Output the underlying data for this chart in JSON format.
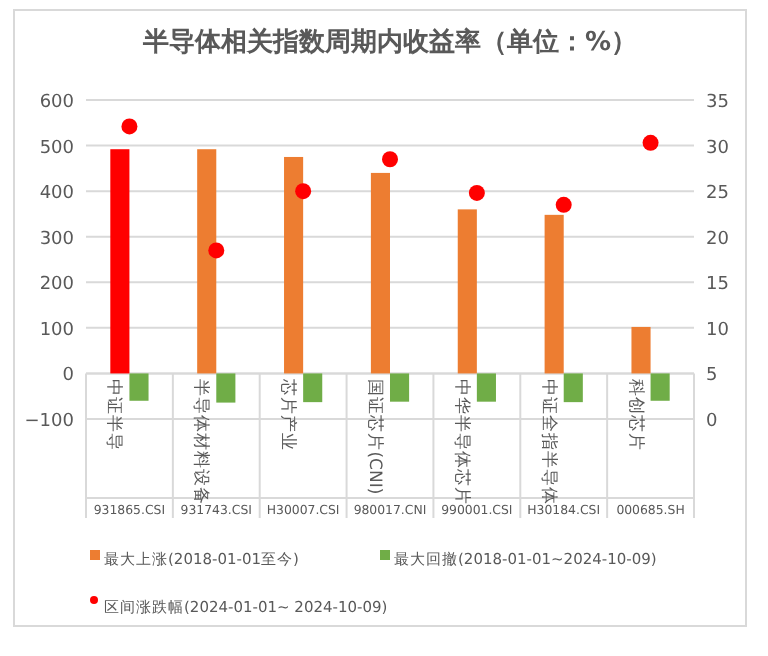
{
  "chart_data": {
    "type": "bar",
    "title": "半导体相关指数周期内收益率（单位：%）",
    "categories": [
      "中证半导\n931865.CSI",
      "半导体材料设备\n931743.CSI",
      "芯片产业\nH30007.CSI",
      "国证芯片(CNI)\n980017.CNI",
      "中华半导体芯片\n990001.CSI",
      "中证全指半导体\nH30184.CSI",
      "科创芯片\n000685.SH"
    ],
    "series": [
      {
        "name": "最大上涨(2018-01-01至今)",
        "color": "#ed7d31",
        "colors": [
          "#ff0000",
          "#ed7d31",
          "#ed7d31",
          "#ed7d31",
          "#ed7d31",
          "#ed7d31",
          "#ed7d31"
        ],
        "values": [
          492,
          492,
          475,
          440,
          360,
          348,
          102
        ]
      },
      {
        "name": "最大回撤(2018-01-01~2024-10-09)",
        "color": "#70ad47",
        "values": [
          -60,
          -64,
          -63,
          -62,
          -62,
          -63,
          -60
        ]
      },
      {
        "name": "区间涨跌幅(2024-01-01~ 2024-10-09)",
        "type": "scatter",
        "axis": "y2",
        "color": "#ff0000",
        "values": [
          32.1,
          18.5,
          25.0,
          28.5,
          24.8,
          23.5,
          30.3
        ]
      }
    ],
    "ylim": [
      -100,
      600
    ],
    "yticks": [
      -100,
      0,
      100,
      200,
      300,
      400,
      500,
      600
    ],
    "y2lim": [
      0,
      35
    ],
    "y2ticks": [
      0,
      5,
      10,
      15,
      20,
      25,
      30,
      35
    ],
    "grid": "y",
    "legend": "bottom",
    "marker": "circle"
  }
}
